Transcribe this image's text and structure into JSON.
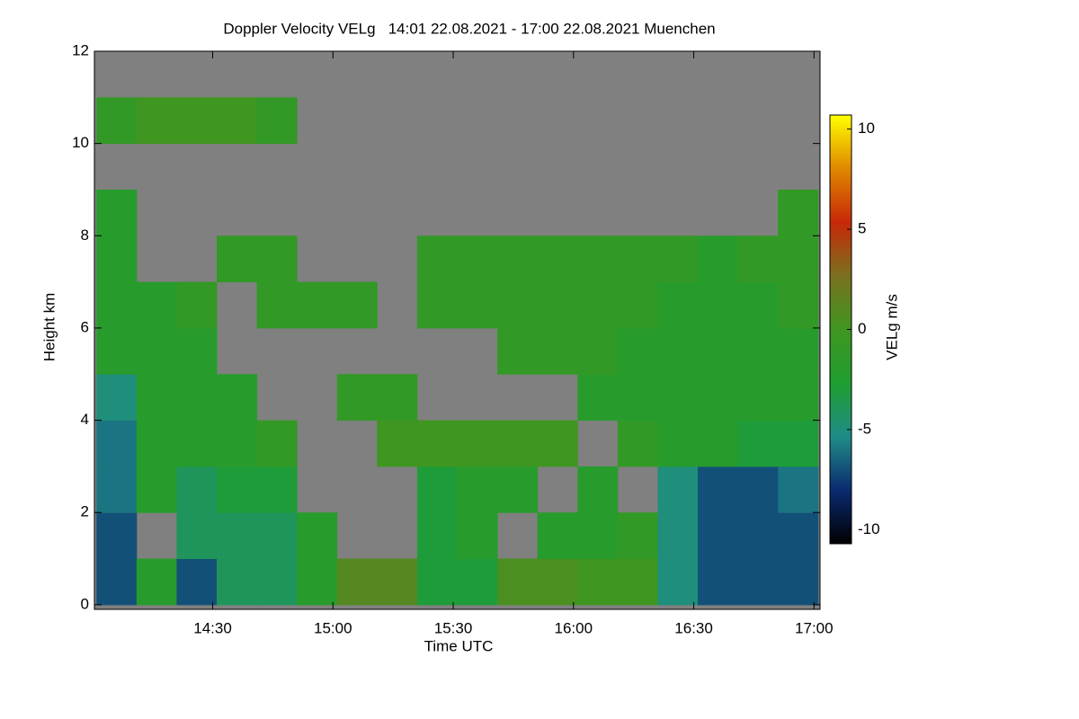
{
  "chart_data": {
    "type": "heatmap",
    "title": "Doppler Velocity VELg   14:01 22.08.2021 - 17:00 22.08.2021 Muenchen",
    "x_label": "Time UTC",
    "y_label": "Height km",
    "colorbar_label": "VELg m/s",
    "x": [
      846,
      856,
      866,
      876,
      886,
      896,
      906,
      916,
      926,
      936,
      946,
      956,
      966,
      976,
      986,
      996,
      1006,
      1016
    ],
    "y": [
      0.5,
      1.5,
      2.5,
      3.5,
      4.5,
      5.5,
      6.5,
      7.5,
      8.5,
      9.5,
      10.5,
      11.5
    ],
    "values": [
      [
        -7,
        -2,
        -7,
        -4,
        -4,
        -2,
        1,
        1,
        -3,
        -3,
        0.5,
        0.5,
        0,
        0,
        -5,
        -7,
        -7,
        -7
      ],
      [
        -7,
        null,
        -4,
        -4,
        -4,
        -2,
        null,
        null,
        -3,
        -2,
        null,
        -2,
        -2,
        -1,
        -5,
        -7,
        -7,
        -7
      ],
      [
        -6,
        -2,
        -4,
        -3,
        -3,
        null,
        null,
        null,
        -3,
        -2,
        -2,
        null,
        -2,
        null,
        -5,
        -7,
        -7,
        -6
      ],
      [
        -6,
        -2,
        -2,
        -2,
        -1,
        null,
        null,
        0,
        0,
        0,
        0,
        0,
        null,
        -1,
        -2,
        -2,
        -3,
        -3
      ],
      [
        -5,
        -2,
        -2,
        -2,
        null,
        null,
        -1,
        -1,
        null,
        null,
        null,
        null,
        -2,
        -2,
        -2,
        -2,
        -2,
        -2
      ],
      [
        -2,
        -2,
        -2,
        null,
        null,
        null,
        null,
        null,
        null,
        null,
        -1,
        -1,
        -1,
        -2,
        -2,
        -2,
        -2,
        -2
      ],
      [
        -2,
        -2,
        -1,
        null,
        -1,
        -1,
        -1,
        null,
        -1,
        -1,
        -1,
        -1,
        -1,
        -1,
        -2,
        -2,
        -2,
        -1
      ],
      [
        -2,
        null,
        null,
        -1,
        -1,
        null,
        null,
        null,
        -1,
        -1,
        -1,
        -1,
        -1,
        -1,
        -1,
        -2,
        -1,
        -1
      ],
      [
        -2,
        null,
        null,
        null,
        null,
        null,
        null,
        null,
        null,
        null,
        null,
        null,
        null,
        null,
        null,
        null,
        null,
        -1
      ],
      [
        null,
        null,
        null,
        null,
        null,
        null,
        null,
        null,
        null,
        null,
        null,
        null,
        null,
        null,
        null,
        null,
        null,
        null
      ],
      [
        -1,
        0,
        0,
        0,
        -1,
        null,
        null,
        null,
        null,
        null,
        null,
        null,
        null,
        null,
        null,
        null,
        null,
        null
      ],
      [
        null,
        null,
        null,
        null,
        null,
        null,
        null,
        null,
        null,
        null,
        null,
        null,
        null,
        null,
        null,
        null,
        null,
        null
      ]
    ],
    "xlim": [
      840.5,
      1021.5
    ],
    "xticks": [
      {
        "value": 870,
        "label": "14:30"
      },
      {
        "value": 900,
        "label": "15:00"
      },
      {
        "value": 930,
        "label": "15:30"
      },
      {
        "value": 960,
        "label": "16:00"
      },
      {
        "value": 990,
        "label": "16:30"
      },
      {
        "value": 1020,
        "label": "17:00"
      }
    ],
    "ylim": [
      -0.1,
      12
    ],
    "yticks": [
      0,
      2,
      4,
      6,
      8,
      10,
      12
    ],
    "zlim": [
      -10.7,
      10.7
    ],
    "zticks": [
      -10,
      -5,
      0,
      5,
      10
    ],
    "colormap": [
      "#000000",
      "#0b2a70",
      "#1f8c86",
      "#1f9e30",
      "#3f9620",
      "#7a7020",
      "#c82808",
      "#e08800",
      "#ffff00"
    ],
    "missing_color": "#808080"
  }
}
